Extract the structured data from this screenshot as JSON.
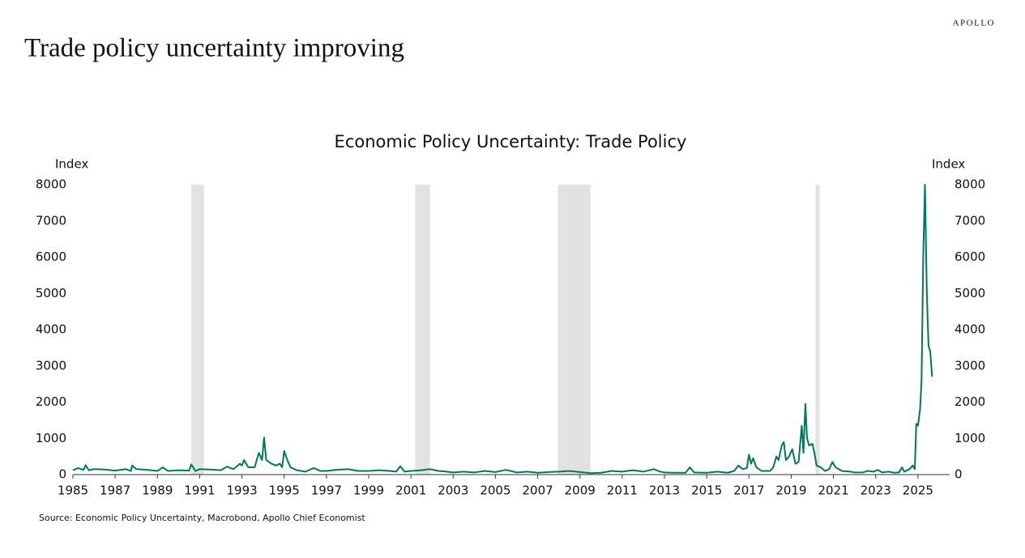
{
  "brand": "APOLLO",
  "headline": "Trade policy uncertainty improving",
  "source": "Source: Economic Policy Uncertainty, Macrobond, Apollo Chief Economist",
  "chart_data": {
    "type": "line",
    "title": "Economic Policy Uncertainty: Trade Policy",
    "y_label": "Index",
    "y2_label": "Index",
    "xlim": [
      1985,
      2026.5
    ],
    "xticks": [
      1985,
      1987,
      1989,
      1991,
      1993,
      1995,
      1997,
      1999,
      2001,
      2003,
      2005,
      2007,
      2009,
      2011,
      2013,
      2015,
      2017,
      2019,
      2021,
      2023,
      2025
    ],
    "ylim": [
      0,
      8000
    ],
    "yticks": [
      0,
      1000,
      2000,
      3000,
      4000,
      5000,
      6000,
      7000,
      8000
    ],
    "y2lim": [
      0,
      8000
    ],
    "y2ticks": [
      0,
      1000,
      2000,
      3000,
      4000,
      5000,
      6000,
      7000,
      8000
    ],
    "recessions": [
      [
        1990.6,
        1991.2
      ],
      [
        2001.2,
        2001.9
      ],
      [
        2007.95,
        2009.5
      ],
      [
        2020.15,
        2020.35
      ]
    ],
    "recession_color": "#e1e2e1",
    "x": [
      1985,
      1985.25,
      1985.5,
      1985.6,
      1985.75,
      1986,
      1986.5,
      1987,
      1987.5,
      1987.75,
      1987.8,
      1988,
      1988.5,
      1989,
      1989.25,
      1989.5,
      1990,
      1990.5,
      1990.6,
      1990.8,
      1991,
      1991.5,
      1992,
      1992.3,
      1992.6,
      1992.9,
      1993,
      1993.1,
      1993.3,
      1993.6,
      1993.8,
      1993.95,
      1994.05,
      1994.15,
      1994.4,
      1994.6,
      1994.8,
      1994.9,
      1995,
      1995.15,
      1995.3,
      1995.6,
      1996,
      1996.4,
      1996.7,
      1997,
      1997.5,
      1998,
      1998.5,
      1999,
      1999.5,
      2000,
      2000.3,
      2000.5,
      2000.7,
      2001,
      2001.5,
      2001.9,
      2002.3,
      2002.7,
      2003,
      2003.5,
      2004,
      2004.5,
      2005,
      2005.5,
      2006,
      2006.5,
      2007,
      2007.5,
      2008,
      2008.5,
      2009,
      2009.5,
      2010,
      2010.5,
      2011,
      2011.5,
      2012,
      2012.5,
      2012.8,
      2013,
      2013.5,
      2014,
      2014.2,
      2014.4,
      2015,
      2015.5,
      2016,
      2016.3,
      2016.5,
      2016.7,
      2016.9,
      2017,
      2017.1,
      2017.2,
      2017.35,
      2017.6,
      2018,
      2018.15,
      2018.3,
      2018.4,
      2018.55,
      2018.65,
      2018.75,
      2018.9,
      2019.05,
      2019.2,
      2019.35,
      2019.5,
      2019.58,
      2019.67,
      2019.75,
      2019.85,
      2020,
      2020.1,
      2020.2,
      2020.4,
      2020.6,
      2020.8,
      2020.95,
      2021.1,
      2021.4,
      2021.8,
      2022,
      2022.4,
      2022.6,
      2022.9,
      2023.1,
      2023.3,
      2023.6,
      2023.9,
      2024.1,
      2024.25,
      2024.35,
      2024.6,
      2024.75,
      2024.85,
      2024.92,
      2025,
      2025.1,
      2025.17,
      2025.25,
      2025.33,
      2025.42,
      2025.5,
      2025.58,
      2025.67
    ],
    "series": [
      {
        "name": "Trade Policy",
        "color": "#00775a",
        "values": [
          120,
          180,
          130,
          260,
          120,
          150,
          140,
          110,
          150,
          100,
          250,
          150,
          130,
          100,
          200,
          100,
          120,
          110,
          280,
          100,
          150,
          140,
          120,
          220,
          150,
          300,
          250,
          400,
          200,
          200,
          600,
          400,
          1020,
          400,
          300,
          250,
          300,
          200,
          650,
          400,
          200,
          120,
          80,
          180,
          100,
          100,
          130,
          150,
          100,
          100,
          120,
          100,
          80,
          230,
          80,
          100,
          120,
          150,
          100,
          80,
          60,
          80,
          60,
          100,
          70,
          130,
          60,
          80,
          50,
          70,
          80,
          100,
          70,
          40,
          50,
          100,
          80,
          120,
          80,
          150,
          80,
          60,
          50,
          50,
          200,
          60,
          50,
          80,
          50,
          100,
          250,
          150,
          180,
          550,
          300,
          450,
          200,
          100,
          100,
          200,
          500,
          400,
          800,
          900,
          400,
          500,
          700,
          300,
          350,
          1350,
          600,
          1950,
          1000,
          800,
          850,
          600,
          250,
          200,
          100,
          150,
          350,
          200,
          100,
          80,
          60,
          60,
          100,
          80,
          130,
          60,
          80,
          50,
          60,
          200,
          80,
          150,
          250,
          150,
          1400,
          1350,
          1800,
          2600,
          6000,
          8000,
          5000,
          3550,
          3400,
          2700
        ]
      }
    ]
  }
}
